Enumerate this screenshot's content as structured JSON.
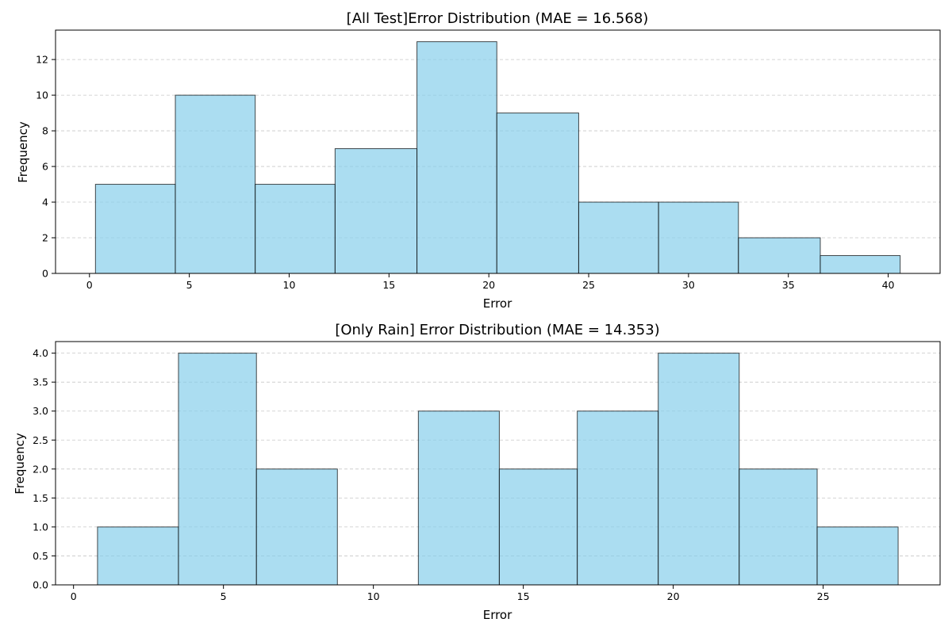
{
  "colors": {
    "bar_fill": "#87ceeb",
    "bar_edge": "#000000",
    "grid": "#b0b0b0"
  },
  "chart_data": [
    {
      "type": "bar",
      "title": "[All Test]Error Distribution (MAE = 16.568)",
      "xlabel": "Error",
      "ylabel": "Frequency",
      "xlim": [
        -1.7,
        42.6
      ],
      "ylim": [
        0,
        13.65
      ],
      "xticks": [
        0,
        5,
        10,
        15,
        20,
        25,
        30,
        35,
        40
      ],
      "yticks": [
        0,
        2,
        4,
        6,
        8,
        10,
        12
      ],
      "ytick_labels": [
        "0",
        "2",
        "4",
        "6",
        "8",
        "10",
        "12"
      ],
      "grid": "y-dashed",
      "bins": [
        {
          "start": 0.3,
          "end": 4.3,
          "count": 5
        },
        {
          "start": 4.3,
          "end": 8.3,
          "count": 10
        },
        {
          "start": 8.3,
          "end": 12.3,
          "count": 5
        },
        {
          "start": 12.3,
          "end": 16.4,
          "count": 7
        },
        {
          "start": 16.4,
          "end": 20.4,
          "count": 13
        },
        {
          "start": 20.4,
          "end": 24.5,
          "count": 9
        },
        {
          "start": 24.5,
          "end": 28.5,
          "count": 4
        },
        {
          "start": 28.5,
          "end": 32.5,
          "count": 4
        },
        {
          "start": 32.5,
          "end": 36.6,
          "count": 2
        },
        {
          "start": 36.6,
          "end": 40.6,
          "count": 1
        }
      ]
    },
    {
      "type": "bar",
      "title": "[Only Rain] Error Distribution (MAE = 14.353)",
      "xlabel": "Error",
      "ylabel": "Frequency",
      "xlim": [
        -0.6,
        28.9
      ],
      "ylim": [
        0,
        4.2
      ],
      "xticks": [
        0,
        5,
        10,
        15,
        20,
        25
      ],
      "yticks": [
        0,
        0.5,
        1,
        1.5,
        2,
        2.5,
        3,
        3.5,
        4
      ],
      "ytick_labels": [
        "0.0",
        "0.5",
        "1.0",
        "1.5",
        "2.0",
        "2.5",
        "3.0",
        "3.5",
        "4.0"
      ],
      "grid": "y-dashed",
      "bins": [
        {
          "start": 0.8,
          "end": 3.5,
          "count": 1
        },
        {
          "start": 3.5,
          "end": 6.1,
          "count": 4
        },
        {
          "start": 6.1,
          "end": 8.8,
          "count": 2
        },
        {
          "start": 8.8,
          "end": 11.5,
          "count": 0
        },
        {
          "start": 11.5,
          "end": 14.2,
          "count": 3
        },
        {
          "start": 14.2,
          "end": 16.8,
          "count": 2
        },
        {
          "start": 16.8,
          "end": 19.5,
          "count": 3
        },
        {
          "start": 19.5,
          "end": 22.2,
          "count": 4
        },
        {
          "start": 22.2,
          "end": 24.8,
          "count": 2
        },
        {
          "start": 24.8,
          "end": 27.5,
          "count": 1
        }
      ]
    }
  ]
}
